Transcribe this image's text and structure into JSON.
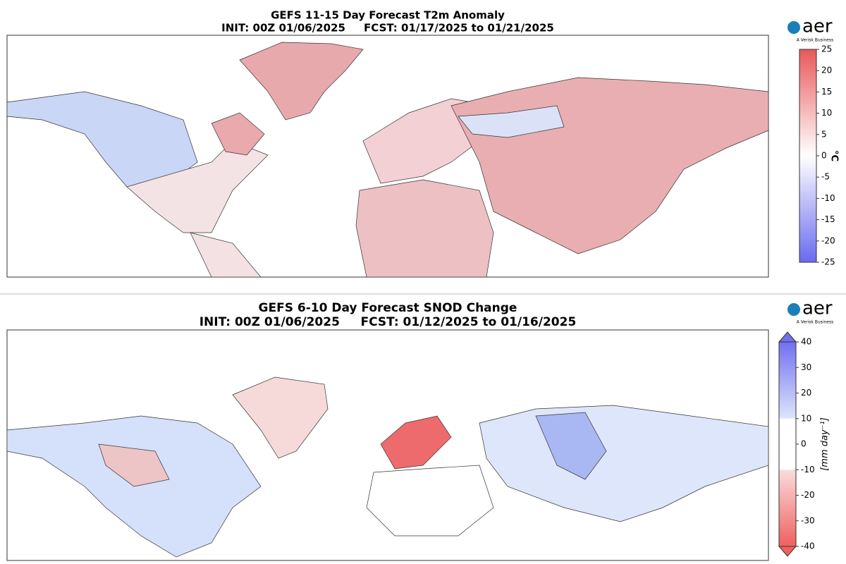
{
  "panels": [
    {
      "title": "GEFS 11-15 Day Forecast T2m Anomaly",
      "subtitle": "INIT: 00Z 01/06/2025     FCST: 01/17/2025 to 01/21/2025",
      "logo": {
        "name": "aer",
        "tagline": "A Verisk Business"
      },
      "colorbar": {
        "label": "°C",
        "ticks": [
          25,
          20,
          15,
          10,
          5,
          0,
          -5,
          -10,
          -15,
          -20,
          -25
        ]
      }
    },
    {
      "title": "GEFS 6-10 Day Forecast SNOD Change",
      "subtitle": "INIT: 00Z 01/06/2025     FCST: 01/12/2025 to 01/16/2025",
      "logo": {
        "name": "aer",
        "tagline": "A Verisk Business"
      },
      "colorbar": {
        "label": "[mm day⁻¹]",
        "ticks": [
          40,
          30,
          20,
          10,
          0,
          -10,
          -20,
          -30,
          -40
        ]
      }
    }
  ]
}
